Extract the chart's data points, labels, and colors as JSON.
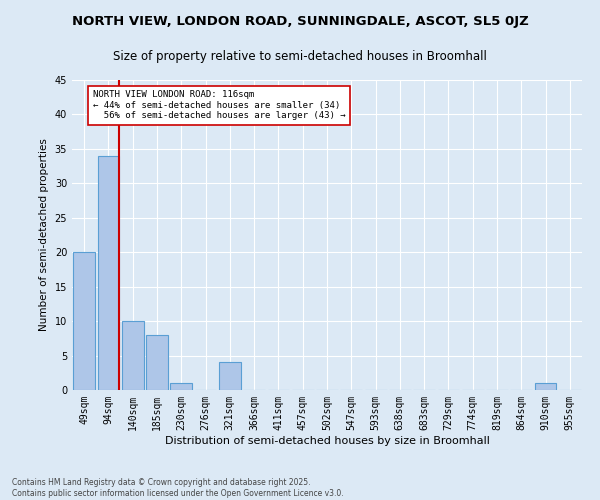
{
  "title1": "NORTH VIEW, LONDON ROAD, SUNNINGDALE, ASCOT, SL5 0JZ",
  "title2": "Size of property relative to semi-detached houses in Broomhall",
  "xlabel": "Distribution of semi-detached houses by size in Broomhall",
  "ylabel": "Number of semi-detached properties",
  "categories": [
    "49sqm",
    "94sqm",
    "140sqm",
    "185sqm",
    "230sqm",
    "276sqm",
    "321sqm",
    "366sqm",
    "411sqm",
    "457sqm",
    "502sqm",
    "547sqm",
    "593sqm",
    "638sqm",
    "683sqm",
    "729sqm",
    "774sqm",
    "819sqm",
    "864sqm",
    "910sqm",
    "955sqm"
  ],
  "values": [
    20,
    34,
    10,
    8,
    1,
    0,
    4,
    0,
    0,
    0,
    0,
    0,
    0,
    0,
    0,
    0,
    0,
    0,
    0,
    1,
    0
  ],
  "bar_color": "#aec6e8",
  "bar_edge_color": "#5a9fd4",
  "subject_line_color": "#cc0000",
  "annotation_text": "NORTH VIEW LONDON ROAD: 116sqm\n← 44% of semi-detached houses are smaller (34)\n  56% of semi-detached houses are larger (43) →",
  "annotation_box_color": "#ffffff",
  "annotation_box_edge_color": "#cc0000",
  "ylim": [
    0,
    45
  ],
  "yticks": [
    0,
    5,
    10,
    15,
    20,
    25,
    30,
    35,
    40,
    45
  ],
  "background_color": "#dce9f5",
  "footer_text": "Contains HM Land Registry data © Crown copyright and database right 2025.\nContains public sector information licensed under the Open Government Licence v3.0.",
  "title1_fontsize": 9.5,
  "title2_fontsize": 8.5,
  "xlabel_fontsize": 8,
  "ylabel_fontsize": 7.5,
  "tick_fontsize": 7,
  "annotation_fontsize": 6.5,
  "footer_fontsize": 5.5
}
